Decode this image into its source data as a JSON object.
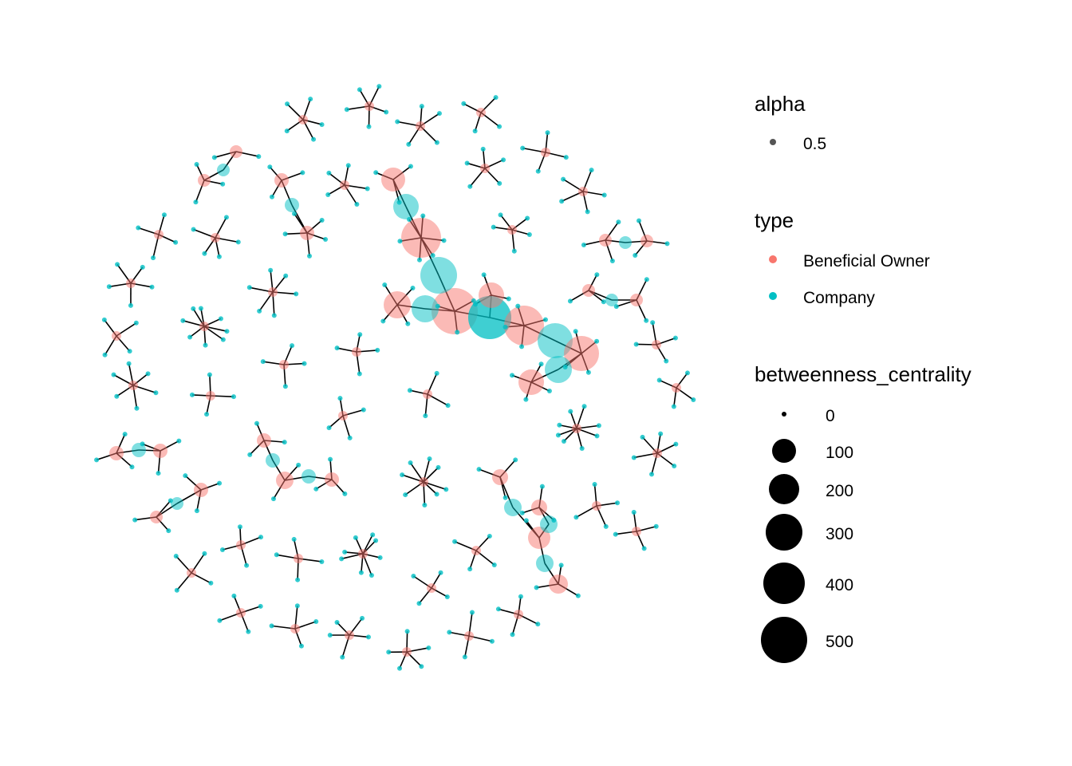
{
  "colors": {
    "beneficial_owner": "#F8766D",
    "company": "#00BFC4",
    "edge": "#000000",
    "alpha_key": "#555555"
  },
  "legend": {
    "alpha": {
      "title": "alpha",
      "items": [
        "0.5"
      ]
    },
    "type": {
      "title": "type",
      "items": [
        {
          "label": "Beneficial Owner",
          "color": "#F8766D"
        },
        {
          "label": "Company",
          "color": "#00BFC4"
        }
      ]
    },
    "betweenness_centrality": {
      "title": "betweenness_centrality",
      "items": [
        "0",
        "100",
        "200",
        "300",
        "400",
        "500"
      ]
    }
  },
  "node_alpha": 0.5
}
